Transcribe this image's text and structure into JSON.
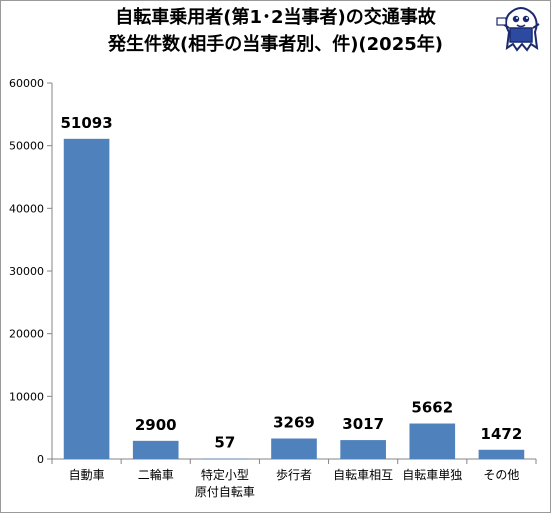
{
  "title_lines": [
    "自転車乗用者(第1･2当事者)の交通事故",
    "発生件数(相手の当事者別、件)(2025年)"
  ],
  "chart_data": {
    "type": "bar",
    "title": "自転車乗用者(第1･2当事者)の交通事故発生件数(相手の当事者別、件)(2025年)",
    "categories": [
      [
        "自動車"
      ],
      [
        "二輪車"
      ],
      [
        "特定小型",
        "原付自転車"
      ],
      [
        "歩行者"
      ],
      [
        "自転車相互"
      ],
      [
        "自転車単独"
      ],
      [
        "その他"
      ]
    ],
    "values": [
      51093,
      2900,
      57,
      3269,
      3017,
      5662,
      1472
    ],
    "ylim": [
      0,
      60000
    ],
    "yticks": [
      0,
      10000,
      20000,
      30000,
      40000,
      50000,
      60000
    ],
    "grid": false,
    "legend": "none",
    "bar_color": "#4f81bd",
    "axis_color": "#868686"
  },
  "mascot": {
    "icon": "ghost-mascot-logo",
    "color": "#1a2a6c"
  }
}
